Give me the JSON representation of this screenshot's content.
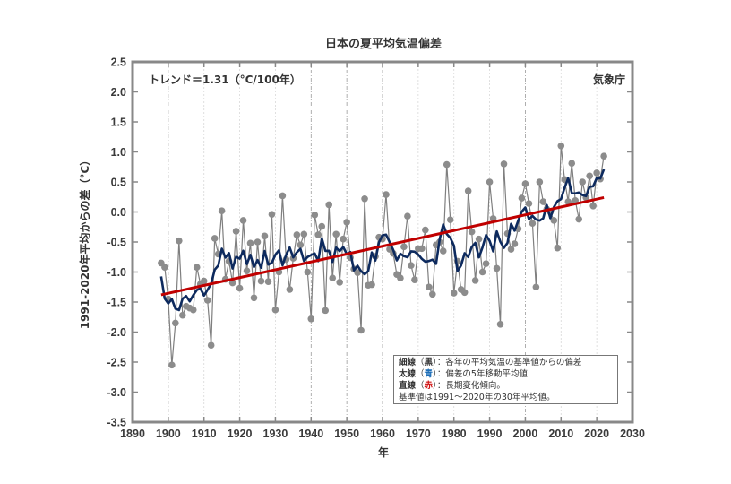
{
  "chart_data": {
    "type": "line",
    "title": "日本の夏平均気温偏差",
    "xlabel": "年",
    "ylabel": "1991-2020年平均からの差（°C）",
    "xlim": [
      1890,
      2030
    ],
    "ylim": [
      -3.5,
      2.5
    ],
    "xticks": [
      1890,
      1900,
      1910,
      1920,
      1930,
      1940,
      1950,
      1960,
      1970,
      1980,
      1990,
      2000,
      2010,
      2020,
      2030
    ],
    "yticks": [
      2.5,
      2.0,
      1.5,
      1.0,
      0.5,
      0.0,
      -0.5,
      -1.0,
      -1.5,
      -2.0,
      -2.5,
      -3.0,
      -3.5
    ],
    "ytick_labels": [
      "2.5",
      "2.0",
      "1.5",
      "1.0",
      "0.5",
      "0.0",
      "-0.5",
      "-1.0",
      "-1.5",
      "-2.0",
      "-2.5",
      "-3.0",
      "-3.5"
    ],
    "grid": "vertical-dashed",
    "x": [
      1898,
      1899,
      1900,
      1901,
      1902,
      1903,
      1904,
      1905,
      1906,
      1907,
      1908,
      1909,
      1910,
      1911,
      1912,
      1913,
      1914,
      1915,
      1916,
      1917,
      1918,
      1919,
      1920,
      1921,
      1922,
      1923,
      1924,
      1925,
      1926,
      1927,
      1928,
      1929,
      1930,
      1931,
      1932,
      1933,
      1934,
      1935,
      1936,
      1937,
      1938,
      1939,
      1940,
      1941,
      1942,
      1943,
      1944,
      1945,
      1946,
      1947,
      1948,
      1949,
      1950,
      1951,
      1952,
      1953,
      1954,
      1955,
      1956,
      1957,
      1958,
      1959,
      1960,
      1961,
      1962,
      1963,
      1964,
      1965,
      1966,
      1967,
      1968,
      1969,
      1970,
      1971,
      1972,
      1973,
      1974,
      1975,
      1976,
      1977,
      1978,
      1979,
      1980,
      1981,
      1982,
      1983,
      1984,
      1985,
      1986,
      1987,
      1988,
      1989,
      1990,
      1991,
      1992,
      1993,
      1994,
      1995,
      1996,
      1997,
      1998,
      1999,
      2000,
      2001,
      2002,
      2003,
      2004,
      2005,
      2006,
      2007,
      2008,
      2009,
      2010,
      2011,
      2012,
      2013,
      2014,
      2015,
      2016,
      2017,
      2018,
      2019,
      2020,
      2021,
      2022
    ],
    "series": [
      {
        "name": "各年の平均気温の基準値からの偏差",
        "style": "thin-gray-with-markers",
        "color": "#7f7f7f",
        "values": [
          -0.85,
          -0.92,
          -1.45,
          -2.55,
          -1.85,
          -0.48,
          -1.72,
          -1.57,
          -1.6,
          -1.63,
          -0.92,
          -1.2,
          -1.15,
          -1.47,
          -2.22,
          -0.44,
          -0.7,
          0.02,
          -1.12,
          -0.82,
          -1.18,
          -0.32,
          -1.27,
          -0.14,
          -0.98,
          -0.52,
          -1.43,
          -0.5,
          -1.15,
          -0.4,
          -1.16,
          -0.04,
          -1.63,
          -1.0,
          0.27,
          -0.79,
          -1.29,
          -0.77,
          -0.38,
          -0.55,
          -0.37,
          -1.0,
          -1.78,
          -0.05,
          -0.38,
          -0.24,
          -1.64,
          0.12,
          -1.1,
          -0.37,
          -1.17,
          -0.45,
          -0.17,
          -0.76,
          -0.95,
          -1.01,
          -1.97,
          0.22,
          -1.22,
          -1.21,
          -0.74,
          -0.42,
          -0.45,
          0.29,
          -0.62,
          -0.69,
          -1.04,
          -1.1,
          -0.58,
          -0.07,
          -0.89,
          -1.13,
          -0.61,
          -0.61,
          -0.3,
          -1.25,
          -1.37,
          -0.55,
          -0.5,
          -0.65,
          0.79,
          -0.13,
          -1.35,
          -0.82,
          -1.29,
          -1.34,
          0.35,
          -0.33,
          -1.14,
          -0.45,
          -1.0,
          -0.86,
          0.5,
          -0.11,
          -0.94,
          -1.87,
          0.8,
          -0.36,
          -0.62,
          -0.53,
          -0.28,
          0.23,
          0.47,
          0.14,
          -0.19,
          -1.25,
          0.5,
          0.17,
          0.05,
          0.0,
          -0.14,
          -0.6,
          1.1,
          0.54,
          0.17,
          0.81,
          0.19,
          -0.12,
          0.5,
          0.24,
          0.6,
          0.1,
          0.65,
          0.55,
          0.93
        ]
      },
      {
        "name": "偏差の5年移動平均値",
        "style": "thick-navy",
        "color": "#0d2a5e",
        "window": 5
      },
      {
        "name": "長期変化傾向",
        "style": "straight-red",
        "color": "#c00000",
        "slope_per_100yr": 1.31,
        "x": [
          1898,
          2022
        ],
        "values": [
          -1.38,
          0.24
        ]
      }
    ],
    "annotations": {
      "trend": "トレンド＝1.31（°C/100年）",
      "source": "気象庁"
    },
    "legend": {
      "placement": "bottom-right",
      "rows": [
        {
          "key": "細線",
          "paren_open": "（",
          "mark": "黒",
          "mark_color": "#333333",
          "paren_close": "）",
          "text": "：各年の平均気温の基準値からの偏差"
        },
        {
          "key": "太線",
          "paren_open": "（",
          "mark": "青",
          "mark_color": "#1f6fb8",
          "paren_close": "）",
          "text": "：偏差の5年移動平均値"
        },
        {
          "key": "直線",
          "paren_open": "（",
          "mark": "赤",
          "mark_color": "#d01010",
          "paren_close": "）",
          "text": "：長期変化傾向。"
        }
      ],
      "note": "基準値は1991〜2020年の30年平均値。"
    }
  }
}
